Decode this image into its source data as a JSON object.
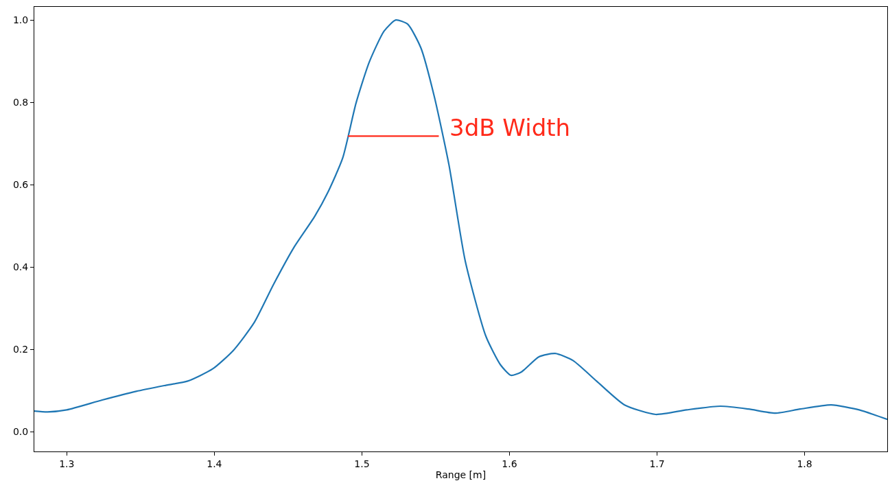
{
  "chart_data": {
    "type": "line",
    "xlabel": "Range [m]",
    "xlim": [
      1.278,
      1.856
    ],
    "ylim": [
      -0.048,
      1.032
    ],
    "xticks": [
      1.3,
      1.4,
      1.5,
      1.6,
      1.7,
      1.8
    ],
    "yticks": [
      {
        "value": 0,
        "label": "0.0"
      },
      {
        "value": 0.2,
        "label": "0.2"
      },
      {
        "value": 0.4,
        "label": "0.4"
      },
      {
        "value": 0.6,
        "label": "0.6"
      },
      {
        "value": 0.8,
        "label": "0.8"
      },
      {
        "value": 1,
        "label": "1.0"
      }
    ],
    "legend": false,
    "marker": "none",
    "line_style": "solid",
    "series": [
      {
        "color": "#1f77b4",
        "x": [
          1.278,
          1.287,
          1.3,
          1.324,
          1.347,
          1.366,
          1.382,
          1.399,
          1.413,
          1.427,
          1.44,
          1.454,
          1.468,
          1.477,
          1.487,
          1.496,
          1.505,
          1.515,
          1.523,
          1.531,
          1.54,
          1.549,
          1.559,
          1.57,
          1.584,
          1.594,
          1.601,
          1.608,
          1.62,
          1.631,
          1.643,
          1.659,
          1.678,
          1.699,
          1.72,
          1.743,
          1.762,
          1.78,
          1.797,
          1.818,
          1.837,
          1.856
        ],
        "values": [
          0.05,
          0.048,
          0.053,
          0.077,
          0.098,
          0.112,
          0.123,
          0.153,
          0.198,
          0.265,
          0.357,
          0.448,
          0.523,
          0.582,
          0.665,
          0.798,
          0.898,
          0.973,
          1.0,
          0.99,
          0.932,
          0.815,
          0.648,
          0.415,
          0.232,
          0.162,
          0.137,
          0.145,
          0.182,
          0.19,
          0.173,
          0.123,
          0.065,
          0.042,
          0.053,
          0.062,
          0.055,
          0.045,
          0.055,
          0.065,
          0.053,
          0.03
        ]
      },
      {
        "name": "3dB Width",
        "color": "#ff2a1a",
        "x": [
          1.4905,
          1.5521
        ],
        "values": [
          0.718,
          0.718
        ]
      }
    ]
  }
}
